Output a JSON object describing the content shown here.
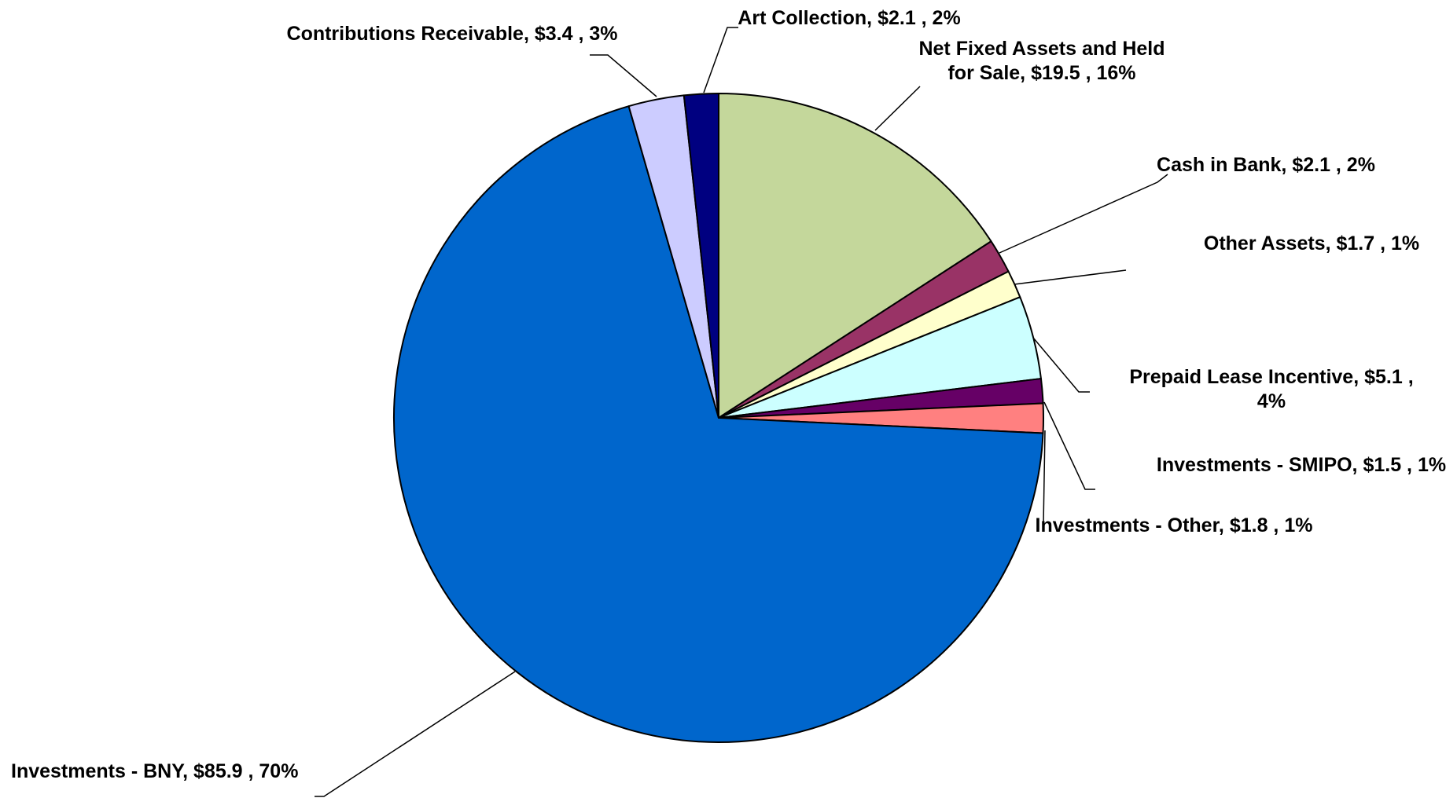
{
  "chart_data": {
    "type": "pie",
    "title": "",
    "slices": [
      {
        "name": "Net Fixed Assets and Held for Sale",
        "value": 19.5,
        "percent": "16%",
        "color": "#C4D79B",
        "label_lines": [
          "Net Fixed Assets and Held",
          "for Sale,  $19.5 , 16%"
        ]
      },
      {
        "name": "Cash in Bank",
        "value": 2.1,
        "percent": "2%",
        "color": "#993366",
        "label_lines": [
          "Cash in Bank,  $2.1 , 2%"
        ]
      },
      {
        "name": "Other Assets",
        "value": 1.7,
        "percent": "1%",
        "color": "#FFFFCC",
        "label_lines": [
          "Other Assets,  $1.7 , 1%"
        ]
      },
      {
        "name": "Prepaid Lease Incentive",
        "value": 5.1,
        "percent": "4%",
        "color": "#CCFFFF",
        "label_lines": [
          "Prepaid Lease Incentive,  $5.1 ,",
          "4%"
        ]
      },
      {
        "name": "Investments - SMIPO",
        "value": 1.5,
        "percent": "1%",
        "color": "#660066",
        "label_lines": [
          "Investments - SMIPO,  $1.5 , 1%"
        ]
      },
      {
        "name": "Investments - Other",
        "value": 1.8,
        "percent": "1%",
        "color": "#FF8080",
        "label_lines": [
          "Investments - Other,  $1.8 , 1%"
        ]
      },
      {
        "name": "Investments - BNY",
        "value": 85.9,
        "percent": "70%",
        "color": "#0066CC",
        "label_lines": [
          "Investments - BNY,  $85.9 , 70%"
        ]
      },
      {
        "name": "Contributions Receivable",
        "value": 3.4,
        "percent": "3%",
        "color": "#CCCCFF",
        "label_lines": [
          "Contributions Receivable,  $3.4 , 3%"
        ]
      },
      {
        "name": "Art Collection",
        "value": 2.1,
        "percent": "2%",
        "color": "#000080",
        "label_lines": [
          "Art Collection,  $2.1 , 2%"
        ]
      }
    ],
    "start_angle": "12 o'clock",
    "direction": "clockwise",
    "legend": "none",
    "data_labels": "outside with leader lines"
  }
}
